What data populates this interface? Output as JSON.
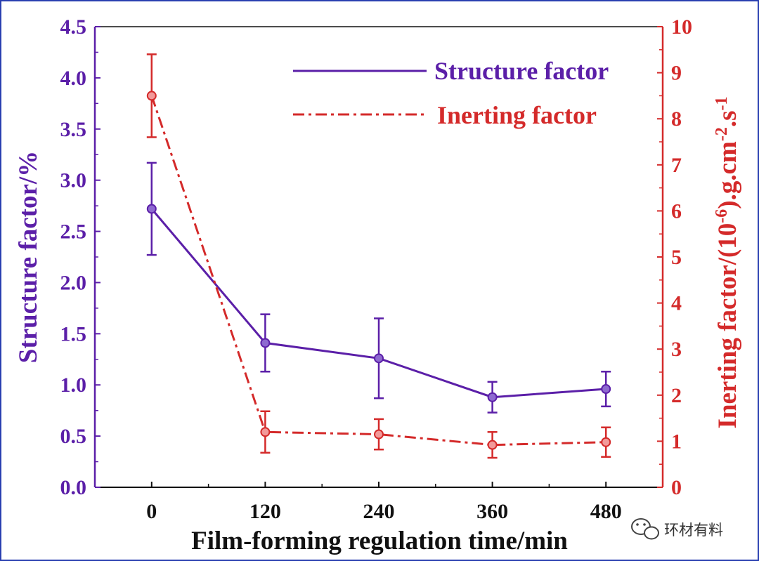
{
  "chart_data": {
    "type": "line",
    "x": [
      0,
      120,
      240,
      360,
      480
    ],
    "x_ticks": [
      "0",
      "120",
      "240",
      "360",
      "480"
    ],
    "xlabel": "Film-forming regulation time/min",
    "xlim": [
      -60,
      540
    ],
    "series": [
      {
        "name": "Structure factor",
        "axis": "left",
        "color": "#5b1fa8",
        "line_style": "solid",
        "values": [
          2.72,
          1.41,
          1.26,
          0.88,
          0.96
        ],
        "error": [
          0.45,
          0.28,
          0.39,
          0.15,
          0.17
        ]
      },
      {
        "name": "Inerting factor",
        "axis": "right",
        "color": "#d42a2a",
        "line_style": "dash-dot",
        "values": [
          8.5,
          1.2,
          1.15,
          0.92,
          0.98
        ],
        "error": [
          0.9,
          0.45,
          0.33,
          0.28,
          0.32
        ]
      }
    ],
    "y_left": {
      "label": "Structure factor/%",
      "lim": [
        0,
        4.5
      ],
      "ticks": [
        "0.0",
        "0.5",
        "1.0",
        "1.5",
        "2.0",
        "2.5",
        "3.0",
        "3.5",
        "4.0",
        "4.5"
      ]
    },
    "y_right": {
      "label_main": "Inerting factor/(10",
      "label_sup1": "-6",
      "label_mid": ").g.cm",
      "label_sup2": "-2",
      "label_mid2": ".s",
      "label_sup3": "-1",
      "lim": [
        0,
        10
      ],
      "ticks": [
        "0",
        "1",
        "2",
        "3",
        "4",
        "5",
        "6",
        "7",
        "8",
        "9",
        "10"
      ]
    },
    "legend": {
      "position": "top-right",
      "entries": [
        "Structure factor",
        "Inerting factor"
      ]
    },
    "grid": false
  },
  "watermark": {
    "text": "环材有料"
  }
}
